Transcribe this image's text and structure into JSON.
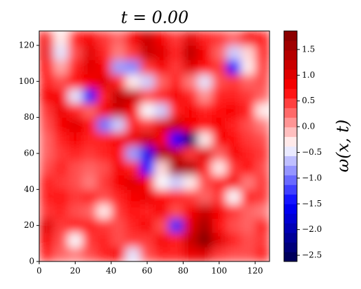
{
  "chart_data": {
    "type": "heatmap",
    "title": "t = 0.00",
    "colorbar_label": "ω(x, t)",
    "colormap": "seismic",
    "xlim": [
      0,
      128
    ],
    "ylim": [
      0,
      128
    ],
    "zlim": [
      -2.62,
      1.86
    ],
    "xticks": [
      0,
      20,
      40,
      60,
      80,
      100,
      120
    ],
    "yticks": [
      0,
      20,
      40,
      60,
      80,
      100,
      120
    ],
    "zticks": [
      {
        "value": -2.5,
        "label": "−2.5"
      },
      {
        "value": -2.0,
        "label": "−2.0"
      },
      {
        "value": -1.5,
        "label": "−1.5"
      },
      {
        "value": -1.0,
        "label": "−1.0"
      },
      {
        "value": -0.5,
        "label": "−0.5"
      },
      {
        "value": 0,
        "label": "0.0"
      },
      0.5,
      {
        "value": 1,
        "label": "1.0"
      },
      1.5
    ],
    "z": [
      [
        0.6,
        0.3,
        0.2,
        0.4,
        0.6,
        0.8,
        -0.5,
        0.4,
        0.6,
        0.6,
        0.9,
        1.0,
        0.5,
        0.4,
        0.4,
        0.6
      ],
      [
        0.8,
        0.4,
        -0.4,
        0.5,
        0.6,
        0.4,
        0.5,
        0.5,
        0.8,
        0.6,
        1.2,
        1.8,
        1.0,
        0.6,
        0.4,
        0.5
      ],
      [
        1.0,
        0.5,
        0.6,
        0.6,
        0.5,
        0.4,
        0.6,
        0.8,
        0.4,
        -1.3,
        1.0,
        1.5,
        0.7,
        0.4,
        0.3,
        0.6
      ],
      [
        0.5,
        0.6,
        0.4,
        0.3,
        -0.3,
        0.5,
        0.7,
        0.6,
        0.8,
        0.4,
        0.8,
        1.2,
        0.8,
        0.5,
        0.3,
        0.2
      ],
      [
        0.6,
        0.7,
        0.5,
        0.6,
        0.4,
        0.6,
        0.8,
        0.9,
        0.7,
        0.6,
        0.5,
        0.3,
        0.5,
        -0.4,
        0.6,
        0.5
      ],
      [
        0.6,
        0.5,
        0.4,
        0.2,
        0.5,
        0.8,
        1.0,
        0.8,
        -0.4,
        -0.6,
        -0.3,
        0.4,
        0.6,
        0.8,
        0.2,
        0.5
      ],
      [
        0.4,
        0.6,
        0.4,
        0.3,
        0.4,
        0.8,
        0.6,
        -1.5,
        -0.2,
        1.5,
        1.4,
        0.6,
        -0.3,
        0.5,
        0.7,
        0.4
      ],
      [
        0.3,
        0.5,
        0.6,
        0.5,
        0.6,
        0.7,
        -0.8,
        -1.6,
        1.4,
        1.2,
        0.5,
        1.0,
        0.3,
        0.8,
        0.6,
        0.5
      ],
      [
        0.3,
        0.6,
        0.8,
        0.6,
        0.6,
        0.8,
        0.9,
        1.2,
        0.8,
        -1.5,
        -2.4,
        -0.3,
        0.8,
        0.7,
        0.5,
        0.4
      ],
      [
        0.4,
        0.8,
        1.0,
        0.7,
        -1.0,
        -0.6,
        0.6,
        0.5,
        1.0,
        1.2,
        0.8,
        0.7,
        0.8,
        0.6,
        0.4,
        0.2
      ],
      [
        0.5,
        0.9,
        0.6,
        0.3,
        0.8,
        1.2,
        0.8,
        -0.4,
        -0.6,
        0.6,
        0.8,
        0.6,
        0.7,
        0.8,
        0.6,
        -0.3
      ],
      [
        0.8,
        0.8,
        -0.5,
        -1.4,
        0.6,
        1.3,
        1.2,
        0.4,
        0.6,
        0.8,
        0.6,
        0.1,
        0.6,
        0.6,
        0.5,
        0.3
      ],
      [
        0.6,
        0.4,
        0.7,
        0.8,
        1.0,
        0.6,
        -0.3,
        -0.6,
        0.3,
        0.6,
        0.2,
        -0.5,
        0.4,
        0.5,
        0.3,
        0.4
      ],
      [
        0.7,
        0.0,
        0.6,
        1.0,
        0.8,
        -0.8,
        -0.9,
        0.5,
        0.8,
        0.5,
        1.0,
        0.7,
        0.5,
        -1.5,
        -0.3,
        0.5
      ],
      [
        0.9,
        -0.5,
        0.4,
        1.0,
        0.6,
        0.2,
        0.5,
        1.2,
        1.0,
        0.6,
        1.3,
        0.8,
        0.3,
        -0.6,
        -0.2,
        0.6
      ],
      [
        0.8,
        -0.3,
        0.6,
        0.8,
        0.5,
        0.3,
        0.8,
        1.2,
        0.8,
        0.5,
        1.0,
        0.6,
        0.5,
        0.3,
        0.8,
        0.6
      ]
    ]
  }
}
